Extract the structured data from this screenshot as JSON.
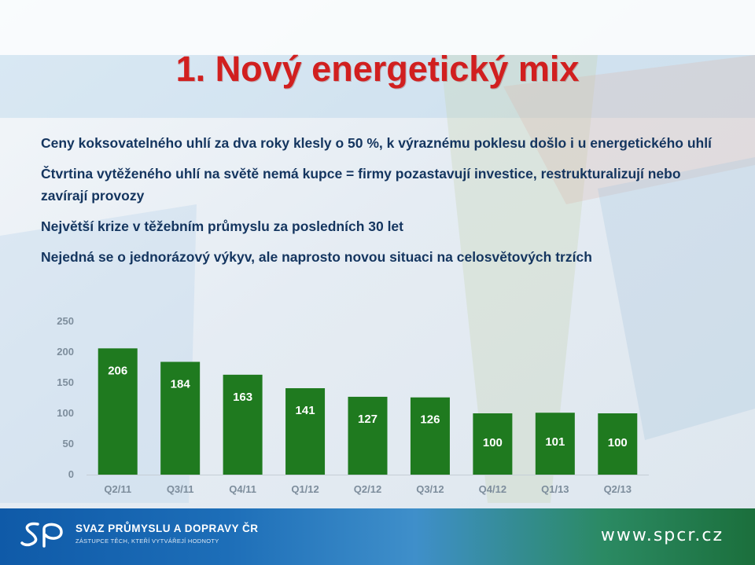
{
  "slide": {
    "title": "1. Nový energetický mix",
    "bullets": [
      "Ceny koksovatelného uhlí za dva roky klesly o 50 %, k výraznému poklesu došlo i u energetického uhlí",
      "Čtvrtina vytěženého uhlí na světě nemá kupce = firmy pozastavují investice, restrukturalizují nebo zavírají provozy",
      "Největší krize v těžebním průmyslu za posledních  30 let",
      "Nejedná se o jednorázový výkyv, ale naprosto novou situaci na celosvětových trzích"
    ]
  },
  "chart_data": {
    "type": "bar",
    "categories": [
      "Q2/11",
      "Q3/11",
      "Q4/11",
      "Q1/12",
      "Q2/12",
      "Q3/12",
      "Q4/12",
      "Q1/13",
      "Q2/13"
    ],
    "values": [
      206,
      184,
      163,
      141,
      127,
      126,
      100,
      101,
      100
    ],
    "data_labels": [
      "206",
      "184",
      "163",
      "141",
      "127",
      "126",
      "100",
      "101",
      "100"
    ],
    "title": "",
    "xlabel": "",
    "ylabel": "",
    "ylim": [
      0,
      250
    ],
    "yticks": [
      "0",
      "50",
      "100",
      "150",
      "200",
      "250"
    ],
    "grid": false,
    "bar_color": "#1f7a1f"
  },
  "footer": {
    "org_name": "SVAZ PRŮMYSLU A DOPRAVY ČR",
    "org_tagline": "ZÁSTUPCE TĚCH, KTEŘÍ VYTVÁŘEJÍ HODNOTY",
    "website": "www.spcr.cz",
    "logo_icon": "spcr-logo-icon"
  }
}
